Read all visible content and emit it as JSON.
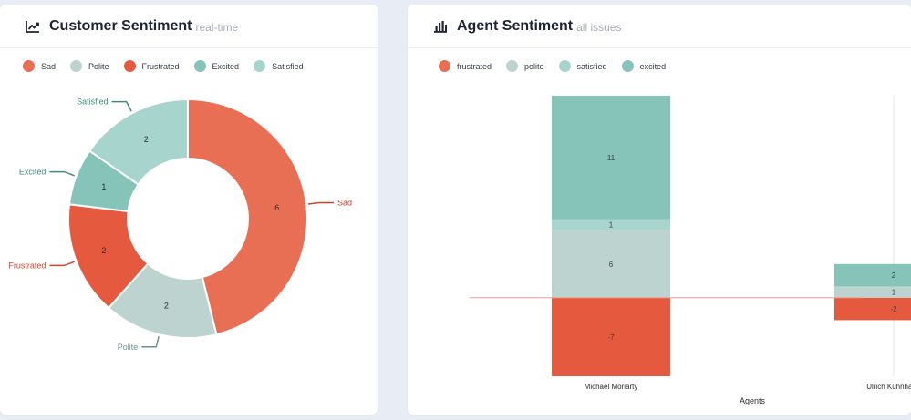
{
  "customer": {
    "title": "Customer Sentiment",
    "subtitle": "real-time",
    "icon": "line-chart-icon"
  },
  "agent": {
    "title": "Agent Sentiment",
    "subtitle": "all issues",
    "icon": "bar-chart-icon"
  },
  "chart_data": [
    {
      "type": "pie",
      "variant": "donut",
      "title": "Customer Sentiment",
      "labels": [
        "Sad",
        "Polite",
        "Frustrated",
        "Excited",
        "Satisfied"
      ],
      "values": [
        6,
        2,
        2,
        1,
        2
      ],
      "colors": [
        "#e86f54",
        "#bcd3d0",
        "#e55a3e",
        "#86c4b9",
        "#a7d5cd"
      ],
      "label_colors": [
        "#c8452b",
        "#6c918c",
        "#c8452b",
        "#3f8a7d",
        "#3f8a7d"
      ]
    },
    {
      "type": "bar",
      "stacked": true,
      "title": "Agent Sentiment",
      "xlabel": "Agents",
      "categories": [
        "Michael Moriarty",
        "Ulrich Kuhnhardt"
      ],
      "series": [
        {
          "name": "frustrated",
          "values": [
            -7,
            -2
          ],
          "color": "#e55a3e"
        },
        {
          "name": "polite",
          "values": [
            6,
            1
          ],
          "color": "#bcd3d0"
        },
        {
          "name": "satisfied",
          "values": [
            1,
            0
          ],
          "color": "#a7d5cd"
        },
        {
          "name": "excited",
          "values": [
            11,
            2
          ],
          "color": "#86c4b9"
        }
      ],
      "legend_colors": [
        "#e86f54",
        "#bcd3d0",
        "#a7d5cd",
        "#86c4b9"
      ],
      "ylim": [
        -7,
        18
      ]
    }
  ]
}
